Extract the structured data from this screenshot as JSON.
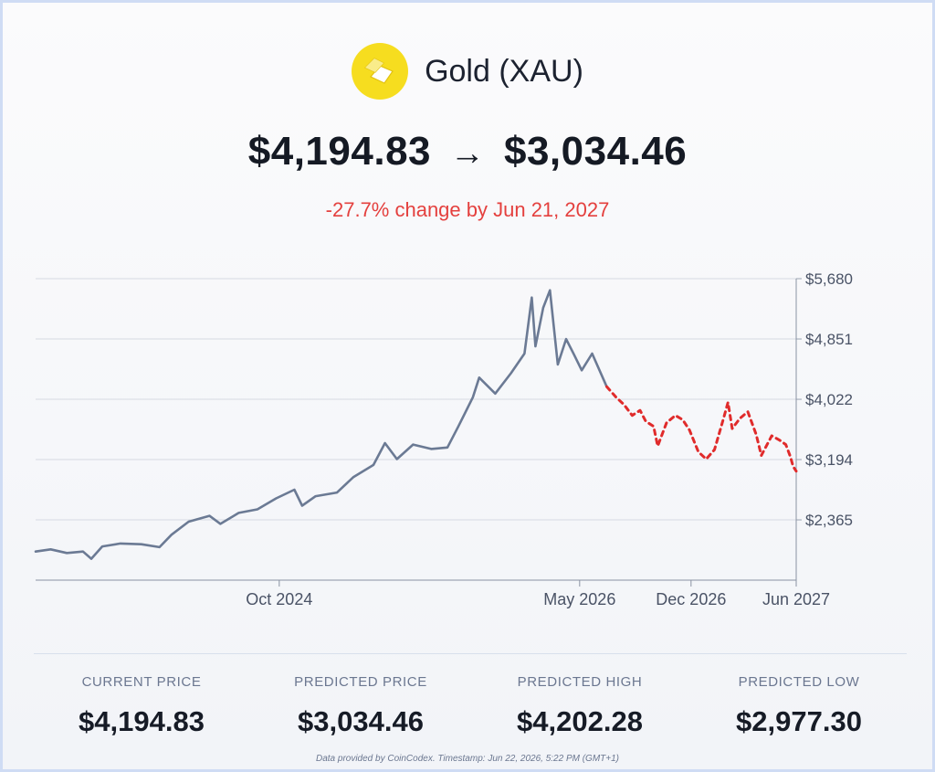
{
  "header": {
    "title": "Gold (XAU)",
    "current_price": "$4,194.83",
    "arrow": "→",
    "predicted_price": "$3,034.46",
    "change_text": "-27.7% change by Jun 21, 2027",
    "logo_icon": "gold-bars-icon",
    "logo_color": "#f6dd1f"
  },
  "colors": {
    "history_line": "#6b7a94",
    "forecast_line": "#e02b2b",
    "change_negative": "#e4403e"
  },
  "chart_data": {
    "type": "line",
    "title": "",
    "xlabel": "",
    "ylabel": "",
    "ylim": [
      1536.5,
      5680
    ],
    "y_ticks": [
      "$5,680",
      "$4,851",
      "$4,022",
      "$3,194",
      "$2,365"
    ],
    "y_tick_values": [
      5680,
      4851,
      4022,
      3194,
      2365
    ],
    "x_ticks": [
      {
        "label": "Oct 2024",
        "date": "2024-10-01"
      },
      {
        "label": "May 2026",
        "date": "2026-05-01"
      },
      {
        "label": "Dec 2026",
        "date": "2026-12-01"
      },
      {
        "label": "Jun 2027",
        "date": "2027-06-21"
      }
    ],
    "x_range": [
      "2023-06-21",
      "2027-06-21"
    ],
    "grid": true,
    "series": [
      {
        "style": "solid",
        "points": [
          [
            "2023-06-21",
            1930
          ],
          [
            "2023-07-20",
            1960
          ],
          [
            "2023-08-20",
            1910
          ],
          [
            "2023-09-20",
            1930
          ],
          [
            "2023-10-06",
            1830
          ],
          [
            "2023-10-27",
            2000
          ],
          [
            "2023-12-01",
            2040
          ],
          [
            "2024-01-10",
            2030
          ],
          [
            "2024-02-14",
            1990
          ],
          [
            "2024-03-08",
            2160
          ],
          [
            "2024-04-10",
            2340
          ],
          [
            "2024-05-20",
            2420
          ],
          [
            "2024-06-10",
            2310
          ],
          [
            "2024-07-15",
            2460
          ],
          [
            "2024-08-20",
            2510
          ],
          [
            "2024-09-25",
            2660
          ],
          [
            "2024-10-30",
            2780
          ],
          [
            "2024-11-14",
            2560
          ],
          [
            "2024-12-10",
            2690
          ],
          [
            "2025-01-20",
            2740
          ],
          [
            "2025-02-20",
            2950
          ],
          [
            "2025-03-31",
            3120
          ],
          [
            "2025-04-22",
            3420
          ],
          [
            "2025-05-15",
            3200
          ],
          [
            "2025-06-15",
            3400
          ],
          [
            "2025-07-20",
            3340
          ],
          [
            "2025-08-20",
            3360
          ],
          [
            "2025-09-10",
            3650
          ],
          [
            "2025-10-08",
            4050
          ],
          [
            "2025-10-20",
            4320
          ],
          [
            "2025-11-20",
            4100
          ],
          [
            "2025-12-20",
            4380
          ],
          [
            "2026-01-15",
            4650
          ],
          [
            "2026-01-29",
            5420
          ],
          [
            "2026-02-05",
            4750
          ],
          [
            "2026-02-20",
            5280
          ],
          [
            "2026-03-05",
            5520
          ],
          [
            "2026-03-20",
            4500
          ],
          [
            "2026-04-05",
            4850
          ],
          [
            "2026-04-20",
            4640
          ],
          [
            "2026-05-05",
            4420
          ],
          [
            "2026-05-25",
            4650
          ],
          [
            "2026-06-22",
            4195
          ]
        ]
      },
      {
        "style": "dashed",
        "points": [
          [
            "2026-06-22",
            4195
          ],
          [
            "2026-07-10",
            4050
          ],
          [
            "2026-07-25",
            3950
          ],
          [
            "2026-08-10",
            3800
          ],
          [
            "2026-08-25",
            3870
          ],
          [
            "2026-09-05",
            3720
          ],
          [
            "2026-09-20",
            3650
          ],
          [
            "2026-09-28",
            3380
          ],
          [
            "2026-10-15",
            3700
          ],
          [
            "2026-11-01",
            3800
          ],
          [
            "2026-11-15",
            3740
          ],
          [
            "2026-11-28",
            3600
          ],
          [
            "2026-12-15",
            3300
          ],
          [
            "2026-12-30",
            3200
          ],
          [
            "2027-01-15",
            3330
          ],
          [
            "2027-02-01",
            3750
          ],
          [
            "2027-02-10",
            3980
          ],
          [
            "2027-02-18",
            3620
          ],
          [
            "2027-03-05",
            3760
          ],
          [
            "2027-03-20",
            3850
          ],
          [
            "2027-04-05",
            3540
          ],
          [
            "2027-04-15",
            3250
          ],
          [
            "2027-05-05",
            3520
          ],
          [
            "2027-05-20",
            3460
          ],
          [
            "2027-06-01",
            3400
          ],
          [
            "2027-06-10",
            3230
          ],
          [
            "2027-06-15",
            3100
          ],
          [
            "2027-06-21",
            3034
          ]
        ]
      }
    ]
  },
  "stats": [
    {
      "label": "CURRENT PRICE",
      "value": "$4,194.83"
    },
    {
      "label": "PREDICTED PRICE",
      "value": "$3,034.46"
    },
    {
      "label": "PREDICTED HIGH",
      "value": "$4,202.28"
    },
    {
      "label": "PREDICTED LOW",
      "value": "$2,977.30"
    }
  ],
  "footer": "Data provided by CoinCodex. Timestamp: Jun 22, 2026, 5:22 PM (GMT+1)"
}
